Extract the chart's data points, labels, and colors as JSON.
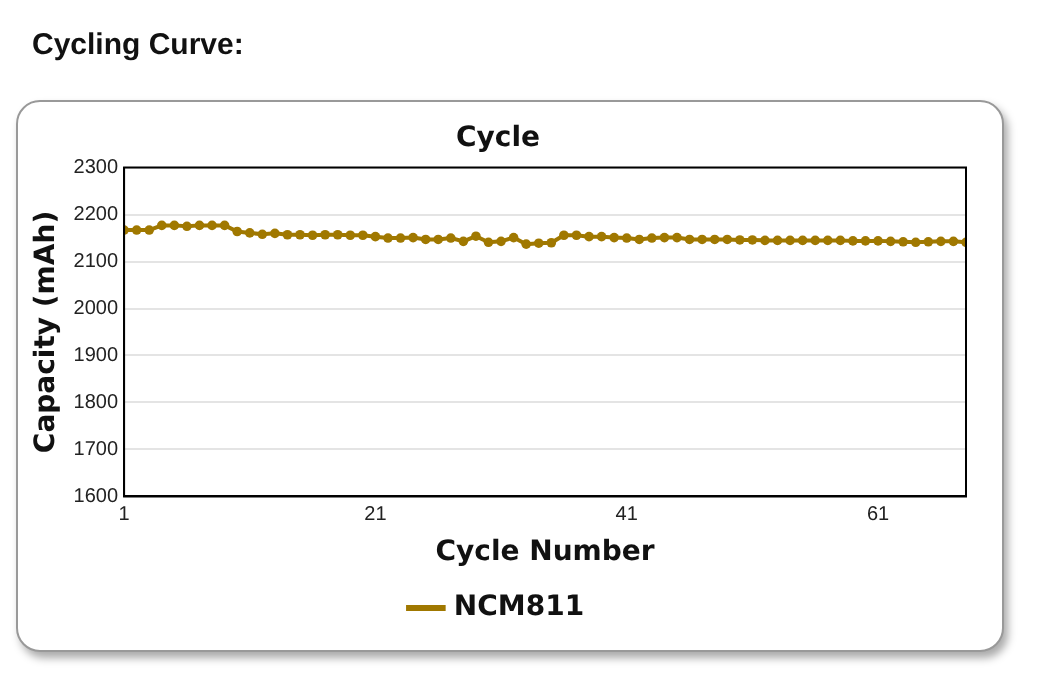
{
  "chart_data": {
    "type": "line",
    "title": "Cycle",
    "xlabel": "Cycle Number",
    "ylabel": "Capacity (mAh)",
    "annotations": [
      "Cycling Curve:"
    ],
    "x": [
      1,
      2,
      3,
      4,
      5,
      6,
      7,
      8,
      9,
      10,
      11,
      12,
      13,
      14,
      15,
      16,
      17,
      18,
      19,
      20,
      21,
      22,
      23,
      24,
      25,
      26,
      27,
      28,
      29,
      30,
      31,
      32,
      33,
      34,
      35,
      36,
      37,
      38,
      39,
      40,
      41,
      42,
      43,
      44,
      45,
      46,
      47,
      48,
      49,
      50,
      51,
      52,
      53,
      54,
      55,
      56,
      57,
      58,
      59,
      60,
      61,
      62,
      63,
      64,
      65,
      66,
      67,
      68
    ],
    "series": [
      {
        "name": "NCM811",
        "color": "#a07800",
        "values": [
          2167,
          2167,
          2167,
          2177,
          2177,
          2175,
          2177,
          2177,
          2177,
          2164,
          2161,
          2158,
          2160,
          2157,
          2157,
          2156,
          2157,
          2157,
          2156,
          2156,
          2153,
          2150,
          2150,
          2151,
          2147,
          2147,
          2150,
          2143,
          2154,
          2141,
          2143,
          2151,
          2137,
          2139,
          2140,
          2156,
          2156,
          2153,
          2153,
          2151,
          2150,
          2147,
          2150,
          2151,
          2151,
          2147,
          2147,
          2147,
          2147,
          2146,
          2146,
          2145,
          2145,
          2145,
          2145,
          2145,
          2145,
          2145,
          2144,
          2144,
          2144,
          2143,
          2142,
          2141,
          2142,
          2143,
          2143,
          2141
        ]
      }
    ],
    "xlim": [
      1,
      68
    ],
    "xticks": [
      1,
      21,
      41,
      61
    ],
    "ylim": [
      1600,
      2300
    ],
    "yticks": [
      1600,
      1700,
      1800,
      1900,
      2000,
      2100,
      2200,
      2300
    ],
    "grid": "y",
    "legend": "bottom",
    "marker": "circle"
  }
}
